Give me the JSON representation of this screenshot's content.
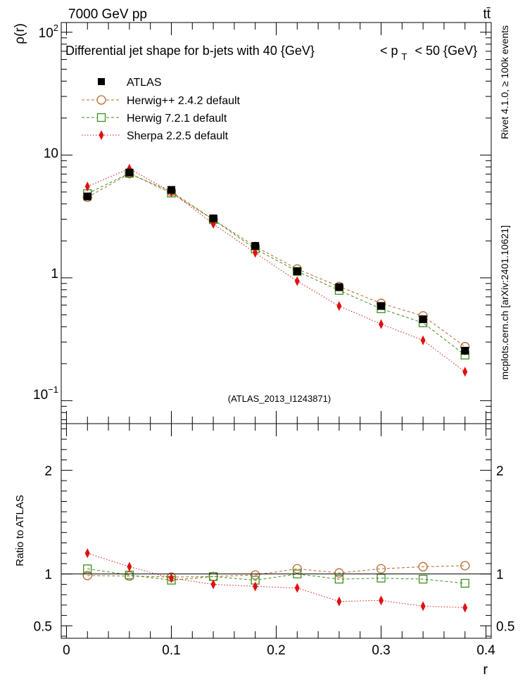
{
  "header": {
    "energy_label": "7000 GeV pp",
    "process_label": "tt̄",
    "rivet_label": "Rivet 4.1.0, ≥ 100k events",
    "mcplots_label": "mcplots.cern.ch [arXiv:2401.10621]"
  },
  "chart_data": {
    "type": "line",
    "title": "Differential jet shape for b-jets with 40 {GeV}    < p_T < 50 {GeV}",
    "title_parts": {
      "main": "Differential jet shape for b-jets with 40 {GeV}",
      "lt": "< p",
      "sub": "T",
      "rest": "< 50 {GeV}"
    },
    "analysis_id": "(ATLAS_2013_I1243871)",
    "ylabel": "ρ(r)",
    "ratio_ylabel": "Ratio to ATLAS",
    "xlabel": "r",
    "x_ticks": [
      "0",
      "0.1",
      "0.2",
      "0.3",
      "0.4"
    ],
    "y_ticks": {
      "exp_2": "10²",
      "ten": "10",
      "one": "1",
      "exp_m1": "10⁻¹"
    },
    "ratio_ticks": [
      "2",
      "1",
      "0.5"
    ],
    "xlim": [
      -0.005,
      0.405
    ],
    "ylim_log": [
      0.065,
      120
    ],
    "ratio_ylim": [
      0.38,
      2.45
    ],
    "x": [
      0.02,
      0.06,
      0.1,
      0.14,
      0.18,
      0.22,
      0.26,
      0.3,
      0.34,
      0.38
    ],
    "series": [
      {
        "name": "ATLAS",
        "color": "#000000",
        "marker": "square-filled",
        "line": "none",
        "values": [
          4.6,
          7.2,
          5.2,
          3.05,
          1.82,
          1.13,
          0.84,
          0.59,
          0.46,
          0.255
        ],
        "ratio": [
          1,
          1,
          1,
          1,
          1,
          1,
          1,
          1,
          1,
          1
        ]
      },
      {
        "name": "Herwig++ 2.4.2 default",
        "color": "#b8672b",
        "marker": "circle-open",
        "line": "dashed",
        "values": [
          4.53,
          7.05,
          5.05,
          2.98,
          1.8,
          1.18,
          0.85,
          0.62,
          0.49,
          0.275
        ],
        "ratio": [
          0.985,
          0.98,
          0.97,
          0.975,
          0.99,
          1.05,
          1.01,
          1.05,
          1.07,
          1.08
        ]
      },
      {
        "name": "Herwig 7.2.1 default",
        "color": "#3e8f1f",
        "marker": "square-open",
        "line": "dashed",
        "values": [
          4.85,
          7.1,
          4.9,
          2.98,
          1.72,
          1.13,
          0.79,
          0.56,
          0.43,
          0.235
        ],
        "ratio": [
          1.05,
          0.99,
          0.94,
          0.975,
          0.94,
          1.0,
          0.95,
          0.96,
          0.95,
          0.91
        ]
      },
      {
        "name": "Sherpa 2.2.5 default",
        "color": "#e01010",
        "marker": "diamond-filled",
        "line": "dotted",
        "values": [
          5.55,
          7.75,
          5.0,
          2.75,
          1.6,
          0.94,
          0.59,
          0.42,
          0.31,
          0.172
        ],
        "ratio": [
          1.2,
          1.07,
          0.96,
          0.9,
          0.88,
          0.865,
          0.735,
          0.745,
          0.69,
          0.675
        ]
      }
    ]
  }
}
